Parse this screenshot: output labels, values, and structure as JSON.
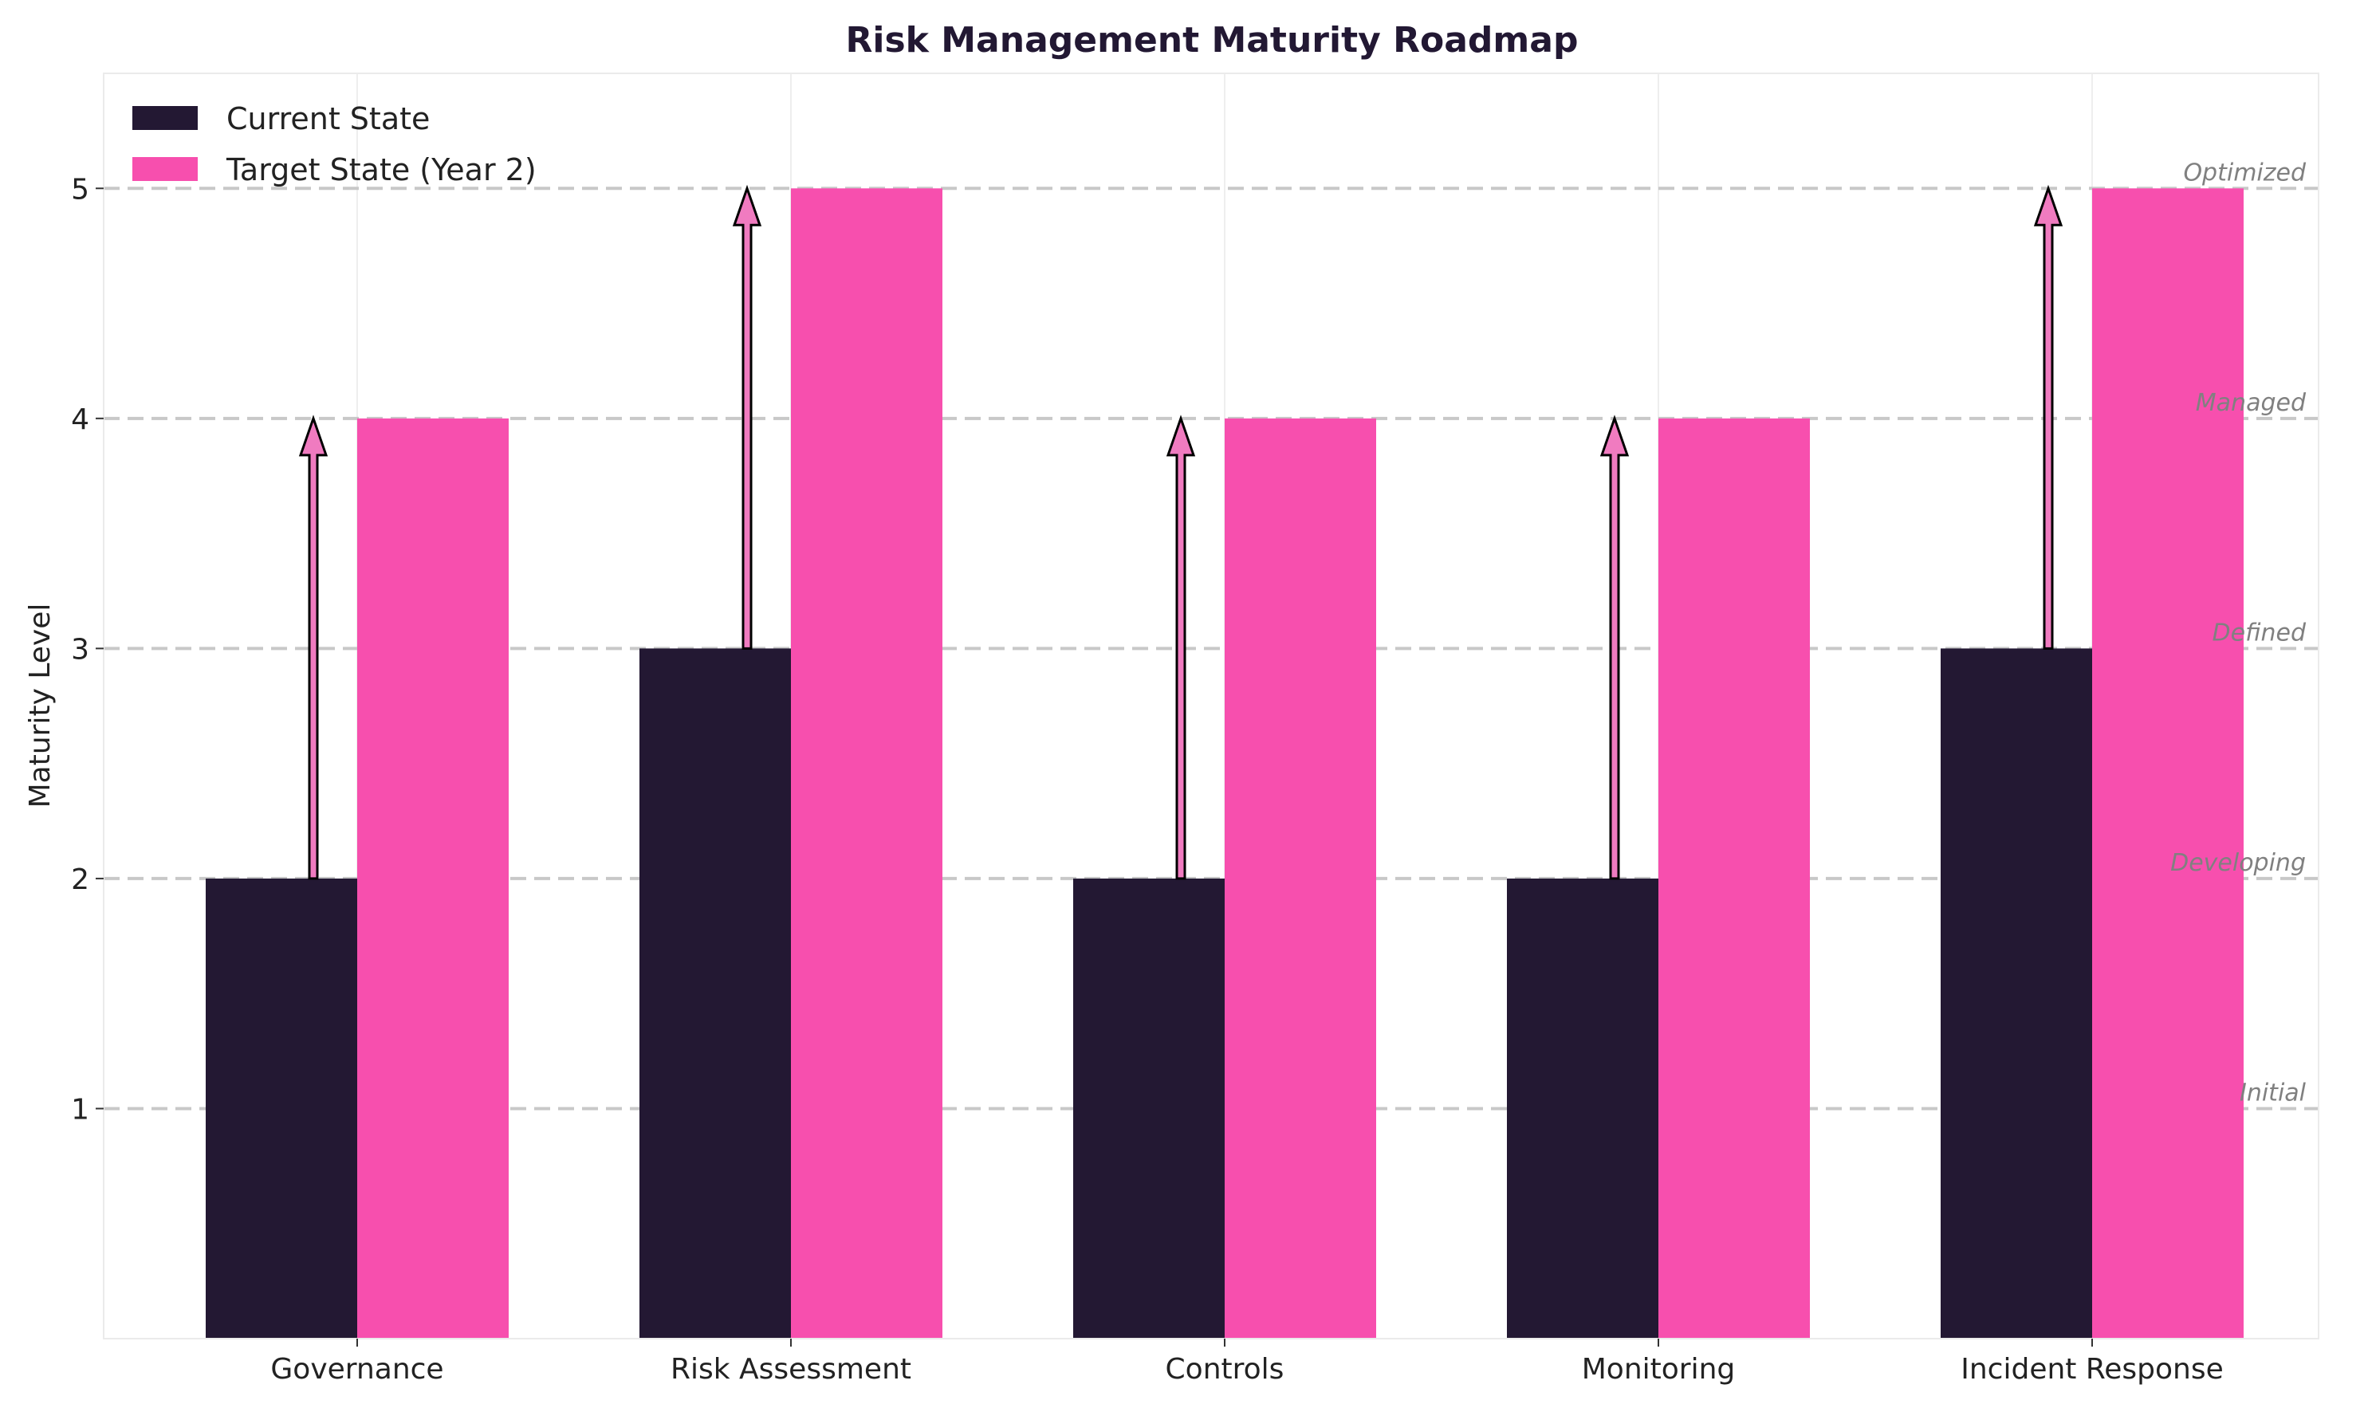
{
  "chart_data": {
    "type": "bar",
    "title": "Risk Management Maturity Roadmap",
    "xlabel": "",
    "ylabel": "Maturity Level",
    "categories": [
      "Governance",
      "Risk Assessment",
      "Controls",
      "Monitoring",
      "Incident Response"
    ],
    "series": [
      {
        "name": "Current State",
        "values": [
          2,
          3,
          2,
          2,
          3
        ],
        "color": "#231833"
      },
      {
        "name": "Target State (Year 2)",
        "values": [
          4,
          5,
          4,
          4,
          5
        ],
        "color": "#f74fae"
      }
    ],
    "ylim": [
      0,
      5.5
    ],
    "yticks": [
      1,
      2,
      3,
      4,
      5
    ],
    "level_labels": [
      {
        "value": 1,
        "label": "Initial"
      },
      {
        "value": 2,
        "label": "Developing"
      },
      {
        "value": 3,
        "label": "Defined"
      },
      {
        "value": 4,
        "label": "Managed"
      },
      {
        "value": 5,
        "label": "Optimized"
      }
    ],
    "arrows": "current-to-target",
    "arrow_color": "#f07bc0",
    "grid": true,
    "legend_position": "top-left"
  }
}
